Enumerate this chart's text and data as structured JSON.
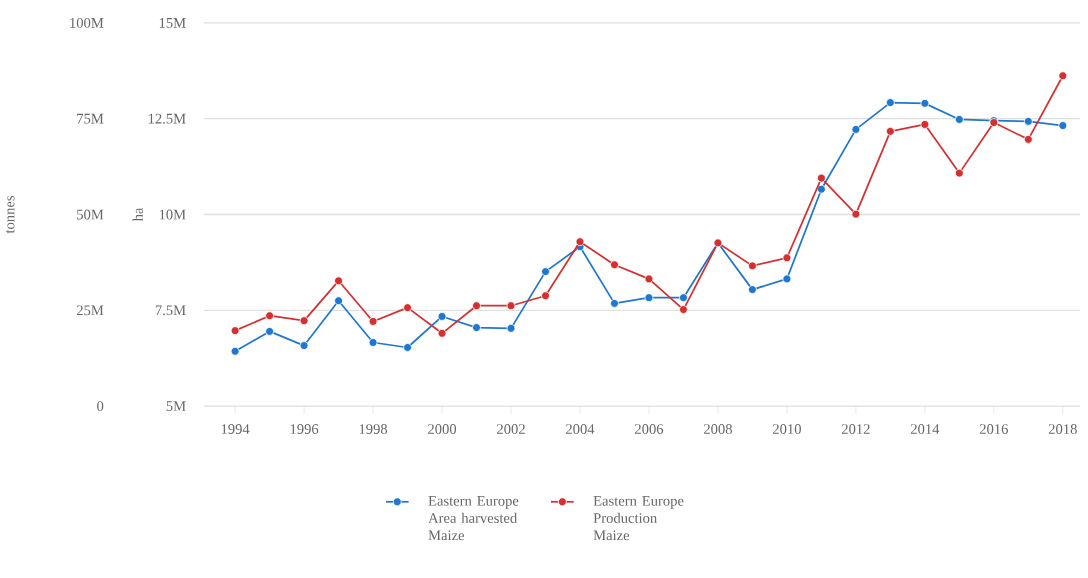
{
  "chart_data": {
    "type": "line",
    "x": [
      1994,
      1995,
      1996,
      1997,
      1998,
      1999,
      2000,
      2001,
      2002,
      2003,
      2004,
      2005,
      2006,
      2007,
      2008,
      2009,
      2010,
      2011,
      2012,
      2013,
      2014,
      2015,
      2016,
      2017,
      2018
    ],
    "xlim": [
      1993.1,
      2018.5
    ],
    "xticks": [
      1994,
      1996,
      1998,
      2000,
      2002,
      2004,
      2006,
      2008,
      2010,
      2012,
      2014,
      2016,
      2018
    ],
    "ylabel": "tonnes",
    "y2label": "ha",
    "ylim": [
      0,
      100000000
    ],
    "yticks": [
      0,
      {
        "value": 25000000,
        "label": "25M"
      },
      {
        "value": 50000000,
        "label": "50M"
      },
      {
        "value": 75000000,
        "label": "75M"
      },
      {
        "value": 100000000,
        "label": "100M"
      }
    ],
    "y2lim": [
      5000000,
      15000000
    ],
    "y2ticks": [
      {
        "value": 5000000,
        "label": "5M"
      },
      {
        "value": 7500000,
        "label": "7.5M"
      },
      {
        "value": 10000000,
        "label": "10M"
      },
      {
        "value": 12500000,
        "label": "12.5M"
      },
      {
        "value": 15000000,
        "label": "15M"
      }
    ],
    "grid": "y",
    "legend": "bottom",
    "marker": "circle",
    "line_style": "solid",
    "series": [
      {
        "name": "Eastern Europe Area harvested Maize",
        "color": "#1f77d0",
        "axis": "y2",
        "values": [
          6430000,
          6950000,
          6580000,
          7750000,
          6660000,
          6530000,
          7340000,
          7050000,
          7030000,
          8510000,
          9160000,
          7680000,
          7830000,
          7830000,
          9260000,
          8040000,
          8320000,
          10660000,
          12220000,
          12920000,
          12900000,
          12480000,
          12450000,
          12430000,
          12320000
        ]
      },
      {
        "name": "Eastern Europe Production Maize",
        "color": "#d62f2f",
        "values": [
          19700000,
          23600000,
          22300000,
          32700000,
          22100000,
          25700000,
          19000000,
          26200000,
          26200000,
          28800000,
          42900000,
          36900000,
          33200000,
          25200000,
          42600000,
          36600000,
          38700000,
          59500000,
          50100000,
          71700000,
          73500000,
          60800000,
          74000000,
          69600000,
          86200000
        ]
      }
    ]
  }
}
